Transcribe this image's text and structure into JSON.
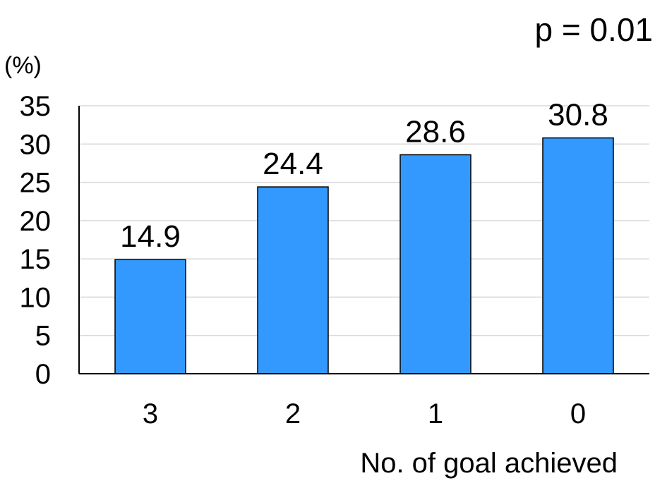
{
  "chart_data": {
    "type": "bar",
    "title": "",
    "annotation": "p = 0.01",
    "ylabel": "(%)",
    "xlabel": "No. of goal achieved",
    "categories": [
      "3",
      "2",
      "1",
      "0"
    ],
    "values": [
      14.9,
      24.4,
      28.6,
      30.8
    ],
    "data_labels": [
      "14.9",
      "24.4",
      "28.6",
      "30.8"
    ],
    "ylim": [
      0,
      35
    ],
    "yticks": [
      0,
      5,
      10,
      15,
      20,
      25,
      30,
      35
    ],
    "grid": true,
    "legend": "none",
    "colors": {
      "bar": "#3399ff",
      "bar_edge": "#000000",
      "grid": "#d9d9d9",
      "axis": "#000000"
    }
  }
}
